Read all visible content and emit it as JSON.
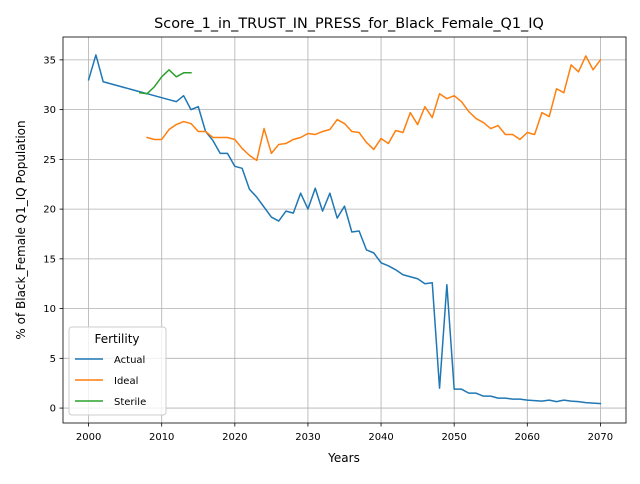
{
  "chart_data": {
    "type": "line",
    "title": "Score_1_in_TRUST_IN_PRESS_for_Black_Female_Q1_IQ",
    "xlabel": "Years",
    "ylabel": "% of Black_Female Q1_IQ Population",
    "xlim": [
      1996.5,
      2073.5
    ],
    "ylim": [
      -1.5,
      37.3
    ],
    "xticks": [
      2000,
      2010,
      2020,
      2030,
      2040,
      2050,
      2060,
      2070
    ],
    "yticks": [
      0,
      5,
      10,
      15,
      20,
      25,
      30,
      35
    ],
    "grid": true,
    "legend": {
      "title": "Fertility",
      "placement": "lower-left"
    },
    "series": [
      {
        "name": "Actual",
        "color": "#1f77b4",
        "points": [
          [
            2000,
            33.0
          ],
          [
            2001,
            35.5
          ],
          [
            2002,
            32.8
          ],
          [
            2003,
            32.6
          ],
          [
            2004,
            32.4
          ],
          [
            2005,
            32.2
          ],
          [
            2006,
            32.0
          ],
          [
            2007,
            31.8
          ],
          [
            2008,
            31.6
          ],
          [
            2009,
            31.4
          ],
          [
            2010,
            31.2
          ],
          [
            2011,
            31.0
          ],
          [
            2012,
            30.8
          ],
          [
            2013,
            31.4
          ],
          [
            2014,
            30.0
          ],
          [
            2015,
            30.3
          ],
          [
            2016,
            27.8
          ],
          [
            2017,
            26.9
          ],
          [
            2018,
            25.6
          ],
          [
            2019,
            25.6
          ],
          [
            2020,
            24.3
          ],
          [
            2021,
            24.1
          ],
          [
            2022,
            22.0
          ],
          [
            2023,
            21.2
          ],
          [
            2024,
            20.2
          ],
          [
            2025,
            19.2
          ],
          [
            2026,
            18.8
          ],
          [
            2027,
            19.8
          ],
          [
            2028,
            19.6
          ],
          [
            2029,
            21.6
          ],
          [
            2030,
            20.0
          ],
          [
            2031,
            22.1
          ],
          [
            2032,
            19.8
          ],
          [
            2033,
            21.6
          ],
          [
            2034,
            19.1
          ],
          [
            2035,
            20.3
          ],
          [
            2036,
            17.7
          ],
          [
            2037,
            17.8
          ],
          [
            2038,
            15.9
          ],
          [
            2039,
            15.6
          ],
          [
            2040,
            14.6
          ],
          [
            2041,
            14.3
          ],
          [
            2042,
            13.9
          ],
          [
            2043,
            13.4
          ],
          [
            2044,
            13.2
          ],
          [
            2045,
            13.0
          ],
          [
            2046,
            12.5
          ],
          [
            2047,
            12.6
          ],
          [
            2048,
            2.0
          ],
          [
            2049,
            12.4
          ],
          [
            2050,
            1.9
          ],
          [
            2051,
            1.9
          ],
          [
            2052,
            1.5
          ],
          [
            2053,
            1.5
          ],
          [
            2054,
            1.2
          ],
          [
            2055,
            1.2
          ],
          [
            2056,
            1.0
          ],
          [
            2057,
            1.0
          ],
          [
            2058,
            0.9
          ],
          [
            2059,
            0.9
          ],
          [
            2060,
            0.8
          ],
          [
            2061,
            0.75
          ],
          [
            2062,
            0.7
          ],
          [
            2063,
            0.8
          ],
          [
            2064,
            0.65
          ],
          [
            2065,
            0.8
          ],
          [
            2066,
            0.7
          ],
          [
            2067,
            0.65
          ],
          [
            2068,
            0.55
          ],
          [
            2069,
            0.5
          ],
          [
            2070,
            0.45
          ]
        ]
      },
      {
        "name": "Ideal",
        "color": "#ff7f0e",
        "points": [
          [
            2008,
            27.2
          ],
          [
            2009,
            27.0
          ],
          [
            2010,
            27.0
          ],
          [
            2011,
            28.0
          ],
          [
            2012,
            28.5
          ],
          [
            2013,
            28.8
          ],
          [
            2014,
            28.6
          ],
          [
            2015,
            27.8
          ],
          [
            2016,
            27.8
          ],
          [
            2017,
            27.2
          ],
          [
            2018,
            27.2
          ],
          [
            2019,
            27.2
          ],
          [
            2020,
            27.0
          ],
          [
            2021,
            26.1
          ],
          [
            2022,
            25.4
          ],
          [
            2023,
            24.9
          ],
          [
            2024,
            28.1
          ],
          [
            2025,
            25.6
          ],
          [
            2026,
            26.5
          ],
          [
            2027,
            26.6
          ],
          [
            2028,
            27.0
          ],
          [
            2029,
            27.2
          ],
          [
            2030,
            27.6
          ],
          [
            2031,
            27.5
          ],
          [
            2032,
            27.8
          ],
          [
            2033,
            28.0
          ],
          [
            2034,
            29.0
          ],
          [
            2035,
            28.6
          ],
          [
            2036,
            27.8
          ],
          [
            2037,
            27.7
          ],
          [
            2038,
            26.7
          ],
          [
            2039,
            26.0
          ],
          [
            2040,
            27.1
          ],
          [
            2041,
            26.6
          ],
          [
            2042,
            27.9
          ],
          [
            2043,
            27.7
          ],
          [
            2044,
            29.7
          ],
          [
            2045,
            28.5
          ],
          [
            2046,
            30.3
          ],
          [
            2047,
            29.2
          ],
          [
            2048,
            31.6
          ],
          [
            2049,
            31.1
          ],
          [
            2050,
            31.4
          ],
          [
            2051,
            30.8
          ],
          [
            2052,
            29.8
          ],
          [
            2053,
            29.1
          ],
          [
            2054,
            28.7
          ],
          [
            2055,
            28.1
          ],
          [
            2056,
            28.4
          ],
          [
            2057,
            27.5
          ],
          [
            2058,
            27.5
          ],
          [
            2059,
            27.0
          ],
          [
            2060,
            27.7
          ],
          [
            2061,
            27.5
          ],
          [
            2062,
            29.7
          ],
          [
            2063,
            29.3
          ],
          [
            2064,
            32.1
          ],
          [
            2065,
            31.7
          ],
          [
            2066,
            34.5
          ],
          [
            2067,
            33.8
          ],
          [
            2068,
            35.4
          ],
          [
            2069,
            34.0
          ],
          [
            2070,
            35.0
          ]
        ]
      },
      {
        "name": "Sterile",
        "color": "#2ca02c",
        "points": [
          [
            2007,
            31.7
          ],
          [
            2008,
            31.6
          ],
          [
            2009,
            32.3
          ],
          [
            2010,
            33.3
          ],
          [
            2011,
            34.0
          ],
          [
            2012,
            33.3
          ],
          [
            2013,
            33.7
          ],
          [
            2014,
            33.7
          ]
        ]
      }
    ]
  }
}
